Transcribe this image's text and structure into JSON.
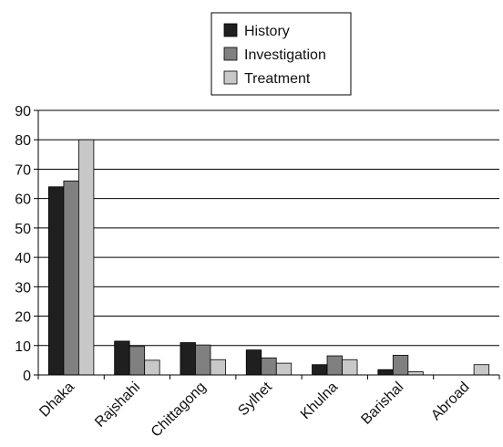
{
  "chart_data": {
    "type": "bar",
    "categories": [
      "Dhaka",
      "Rajshahi",
      "Chittagong",
      "Sylhet",
      "Khulna",
      "Barishal",
      "Abroad"
    ],
    "series": [
      {
        "name": "History",
        "values": [
          64,
          11.5,
          11,
          8.5,
          3.5,
          1.8,
          0
        ]
      },
      {
        "name": "Investigation",
        "values": [
          66,
          9.7,
          10.2,
          5.8,
          6.5,
          6.7,
          0
        ]
      },
      {
        "name": "Treatment",
        "values": [
          80,
          5,
          5.2,
          4,
          5.2,
          1.1,
          3.5
        ]
      }
    ],
    "ylim": [
      0,
      90
    ],
    "yticks": [
      0,
      10,
      20,
      30,
      40,
      50,
      60,
      70,
      80,
      90
    ],
    "grid": true,
    "legend_position": "top-center",
    "colors": {
      "History": "#1f1f1f",
      "Investigation": "#808080",
      "Treatment": "#c8c8c8",
      "grid": "#000000",
      "axis": "#000000"
    }
  }
}
